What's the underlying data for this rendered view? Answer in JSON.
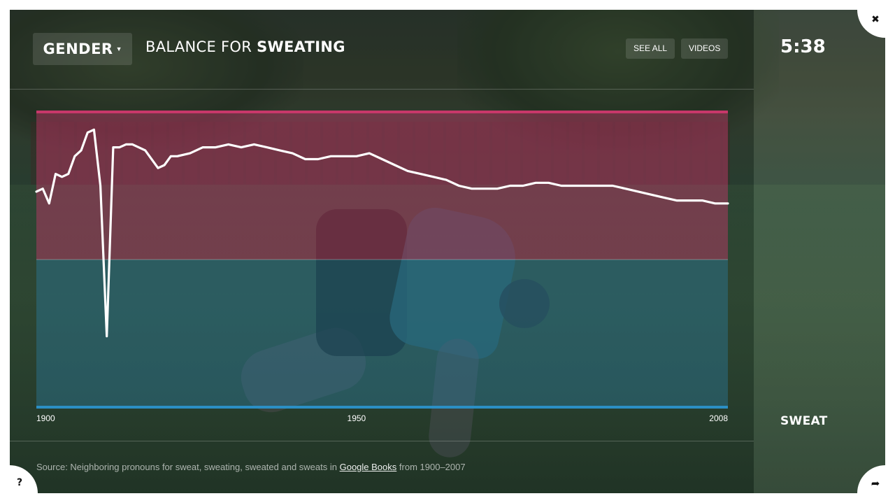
{
  "header": {
    "dropdown_label": "GENDER",
    "title_prefix": "BALANCE FOR",
    "title_word": "SWEATING",
    "see_all": "SEE ALL",
    "videos": "VIDEOS",
    "timer": "5:38"
  },
  "side": {
    "word": "SWEAT"
  },
  "corners": {
    "close": "✖",
    "help": "?",
    "share": "➦"
  },
  "source": {
    "prefix": "Source: Neighboring pronouns for sweat, sweating, sweated and sweats in",
    "link": "Google Books",
    "suffix": "from 1900–2007"
  },
  "colors": {
    "top_band": "#c8386a",
    "bottom_band": "#2b8fc4",
    "line": "#ffffff"
  },
  "chart_data": {
    "type": "line",
    "title": "BALANCE FOR SWEATING",
    "xlabel": "",
    "ylabel": "",
    "x_ticks": [
      "1900",
      "1950",
      "2008"
    ],
    "xlim": [
      1900,
      2008
    ],
    "ylim": [
      0,
      1
    ],
    "grid": true,
    "series": [
      {
        "name": "",
        "x": [
          1900,
          1901,
          1902,
          1903,
          1904,
          1905,
          1906,
          1907,
          1908,
          1909,
          1910,
          1911,
          1912,
          1913,
          1914,
          1915,
          1917,
          1919,
          1920,
          1921,
          1922,
          1924,
          1926,
          1928,
          1930,
          1932,
          1934,
          1936,
          1938,
          1940,
          1942,
          1944,
          1946,
          1948,
          1950,
          1952,
          1954,
          1956,
          1958,
          1960,
          1962,
          1964,
          1966,
          1968,
          1970,
          1972,
          1974,
          1976,
          1978,
          1980,
          1982,
          1984,
          1986,
          1988,
          1990,
          1992,
          1994,
          1996,
          1998,
          2000,
          2002,
          2004,
          2006,
          2008
        ],
        "y": [
          0.73,
          0.74,
          0.69,
          0.79,
          0.78,
          0.79,
          0.85,
          0.87,
          0.93,
          0.94,
          0.75,
          0.24,
          0.88,
          0.88,
          0.89,
          0.89,
          0.87,
          0.81,
          0.82,
          0.85,
          0.85,
          0.86,
          0.88,
          0.88,
          0.89,
          0.88,
          0.89,
          0.88,
          0.87,
          0.86,
          0.84,
          0.84,
          0.85,
          0.85,
          0.85,
          0.86,
          0.84,
          0.82,
          0.8,
          0.79,
          0.78,
          0.77,
          0.75,
          0.74,
          0.74,
          0.74,
          0.75,
          0.75,
          0.76,
          0.76,
          0.75,
          0.75,
          0.75,
          0.75,
          0.75,
          0.74,
          0.73,
          0.72,
          0.71,
          0.7,
          0.7,
          0.7,
          0.69,
          0.69
        ]
      }
    ]
  }
}
